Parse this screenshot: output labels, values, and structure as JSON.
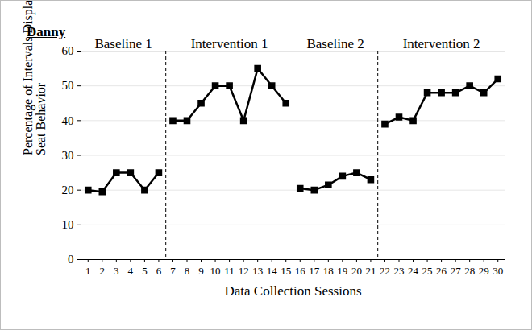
{
  "chart_data": {
    "type": "line",
    "title": "Danny",
    "x_label": "Data Collection Sessions",
    "y_label": "Percentage of Intervals Displaying In-Seat Behavior",
    "x": [
      1,
      2,
      3,
      4,
      5,
      6,
      7,
      8,
      9,
      10,
      11,
      12,
      13,
      14,
      15,
      16,
      17,
      18,
      19,
      20,
      21,
      22,
      23,
      24,
      25,
      26,
      27,
      28,
      29,
      30
    ],
    "values": [
      20,
      19.5,
      25,
      25,
      20,
      25,
      40,
      40,
      45,
      50,
      50,
      40,
      55,
      50,
      45,
      20.5,
      20,
      21.5,
      24,
      25,
      23,
      39,
      41,
      40,
      48,
      48,
      48,
      50,
      48,
      52
    ],
    "color": "#000000",
    "marker": "square",
    "phases": [
      {
        "label": "Baseline 1",
        "sessions": [
          1,
          6
        ]
      },
      {
        "label": "Intervention 1",
        "sessions": [
          7,
          15
        ]
      },
      {
        "label": "Baseline 2",
        "sessions": [
          16,
          21
        ]
      },
      {
        "label": "Intervention 2",
        "sessions": [
          22,
          30
        ]
      }
    ],
    "xlim": [
      0.5,
      30.5
    ],
    "xticks": [
      1,
      2,
      3,
      4,
      5,
      6,
      7,
      8,
      9,
      10,
      11,
      12,
      13,
      14,
      15,
      16,
      17,
      18,
      19,
      20,
      21,
      22,
      23,
      24,
      25,
      26,
      27,
      28,
      29,
      30
    ],
    "ylim": [
      0,
      60
    ],
    "yticks": [
      0,
      10,
      20,
      30,
      40,
      50,
      60
    ],
    "grid": true
  }
}
